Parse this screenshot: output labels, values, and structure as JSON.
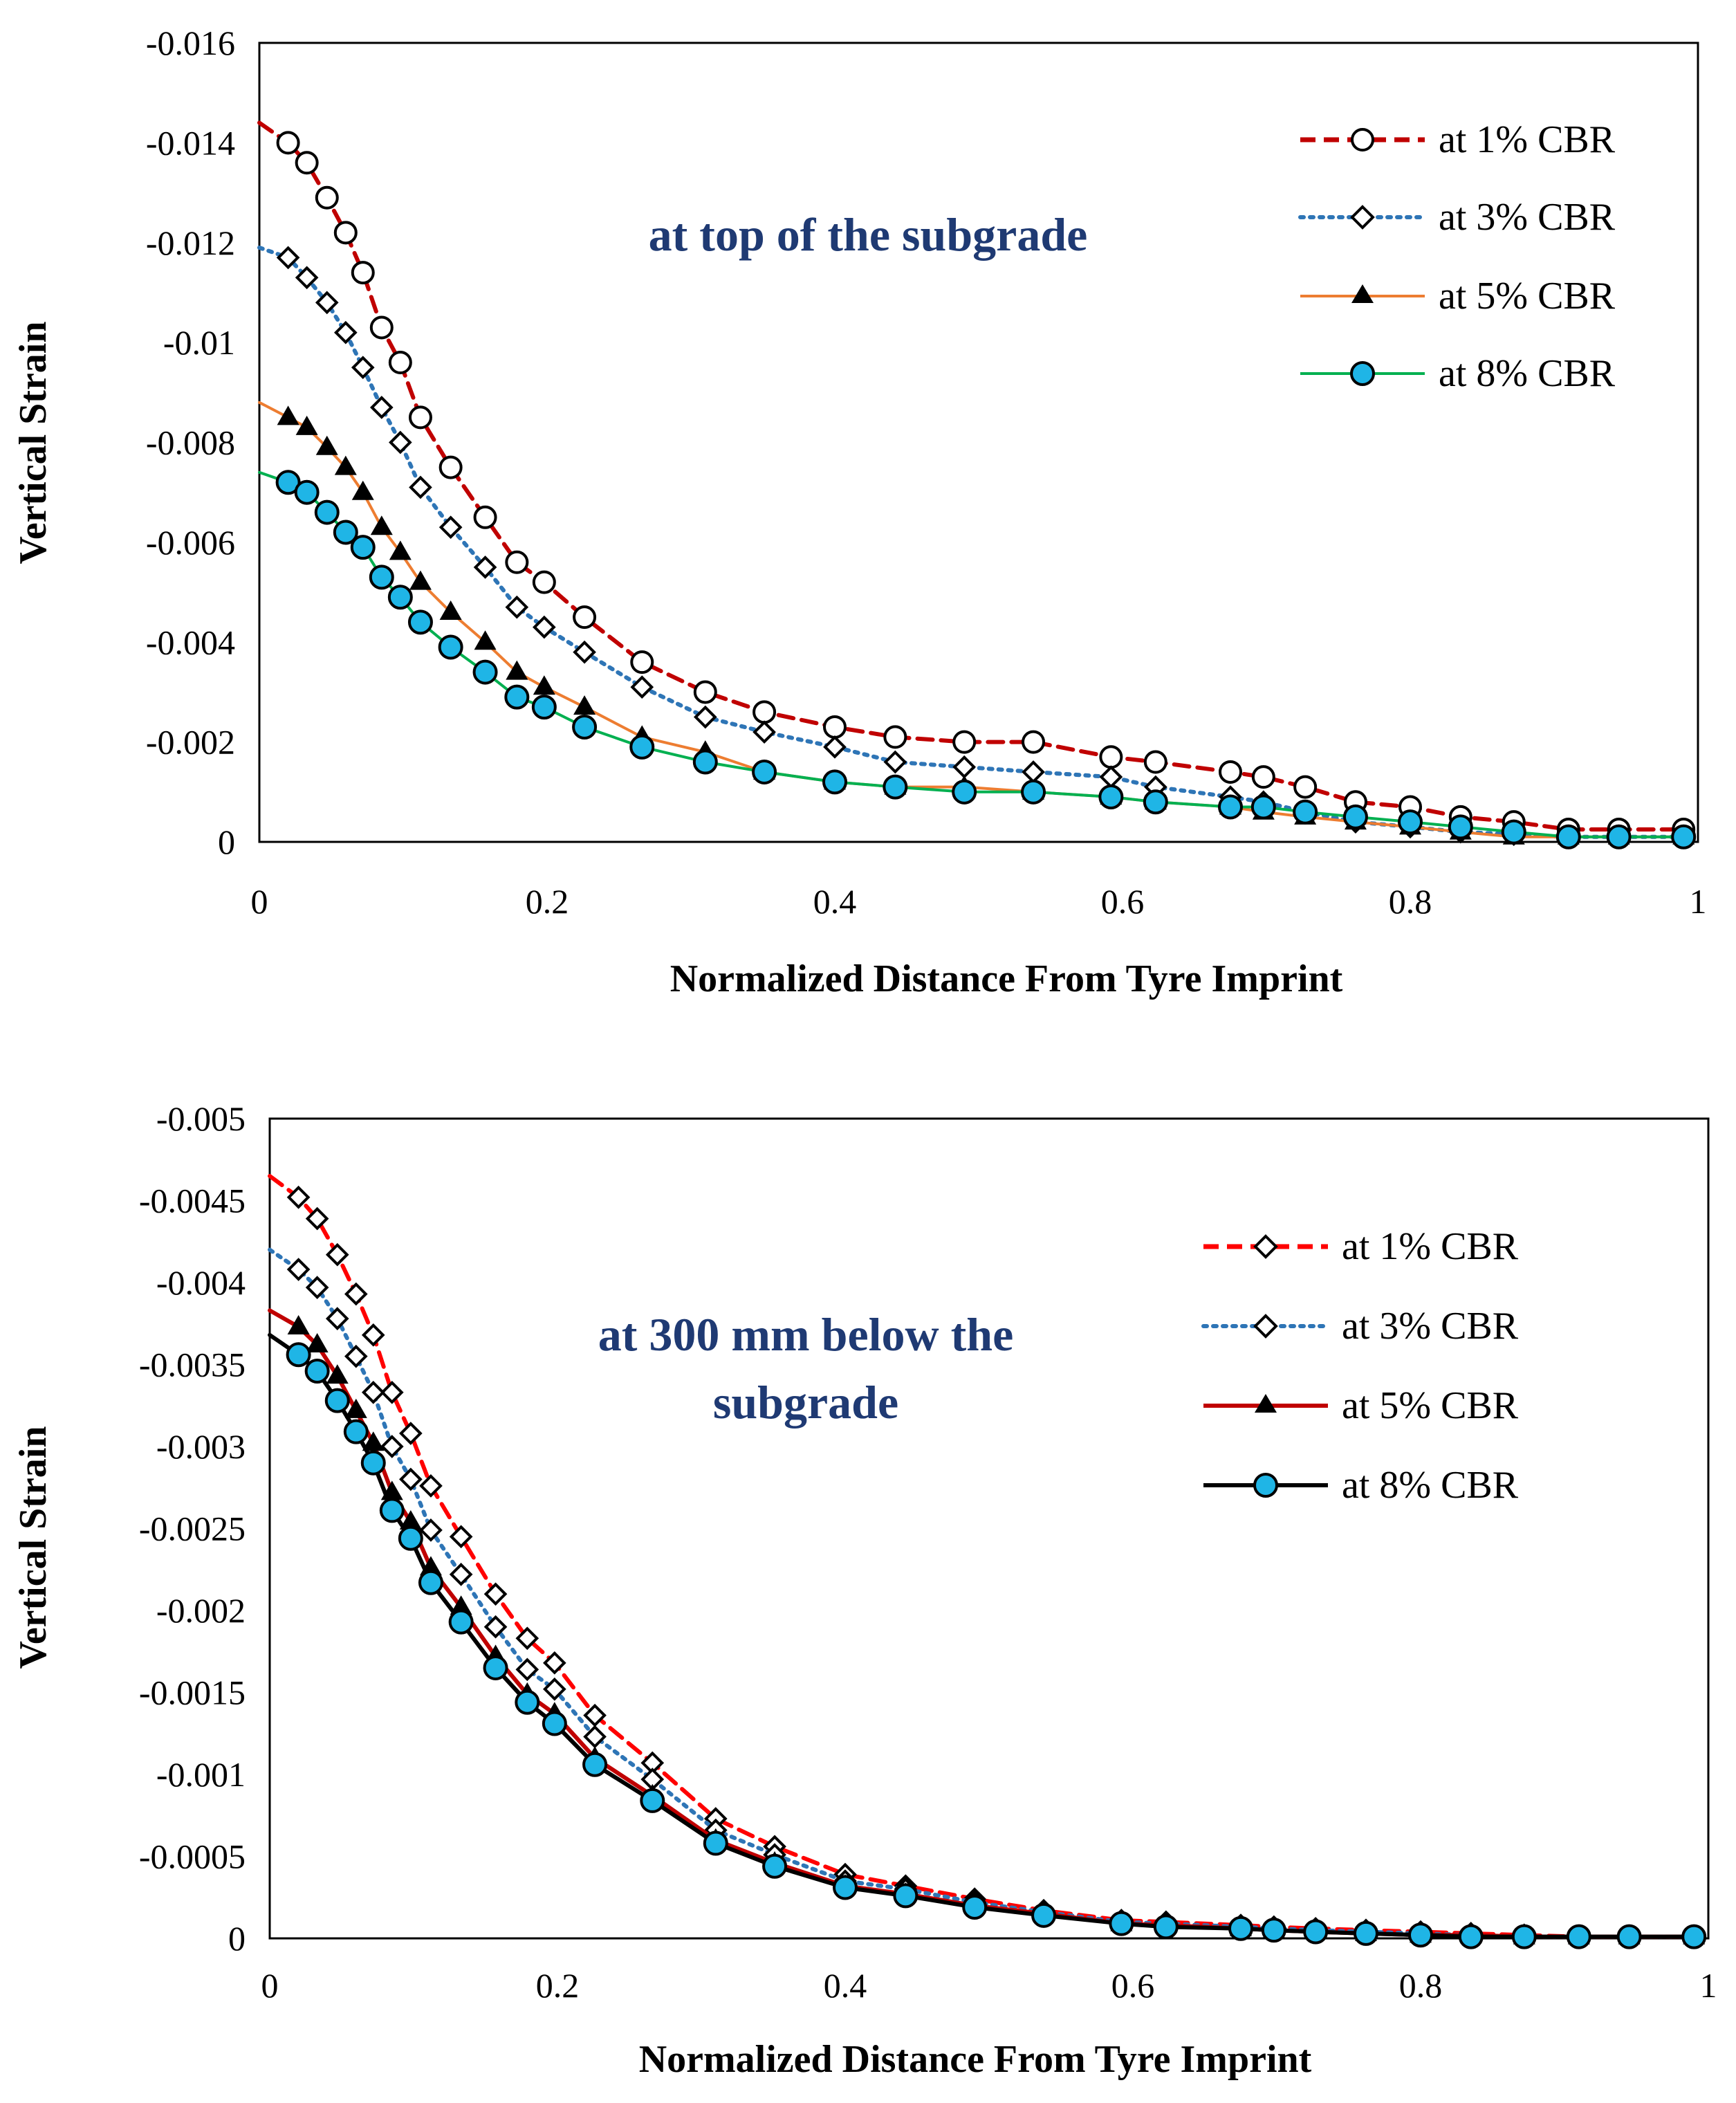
{
  "chart_data": [
    {
      "type": "line",
      "annotation": [
        "at top of the subgrade"
      ],
      "annotation_color": "#1f3a73",
      "xlabel": "Normalized Distance From Tyre Imprint",
      "ylabel": "Vertical Strain",
      "xlim": [
        0,
        1
      ],
      "ylim": [
        0,
        -0.016
      ],
      "x_ticks": [
        0,
        0.2,
        0.4,
        0.6,
        0.8,
        1
      ],
      "x_tick_labels": [
        "0",
        "0.2",
        "0.4",
        "0.6",
        "0.8",
        "1"
      ],
      "y_ticks": [
        -0.016,
        -0.014,
        -0.012,
        -0.01,
        -0.008,
        -0.006,
        -0.004,
        -0.002,
        0
      ],
      "y_tick_labels": [
        "-0.016",
        "-0.014",
        "-0.012",
        "-0.01",
        "-0.008",
        "-0.006",
        "-0.004",
        "-0.002",
        "0"
      ],
      "legend_position": "top-right",
      "x": [
        0.02,
        0.033,
        0.047,
        0.06,
        0.072,
        0.085,
        0.098,
        0.112,
        0.133,
        0.157,
        0.179,
        0.198,
        0.226,
        0.266,
        0.31,
        0.351,
        0.4,
        0.442,
        0.49,
        0.538,
        0.592,
        0.623,
        0.675,
        0.698,
        0.727,
        0.762,
        0.8,
        0.835,
        0.872,
        0.91,
        0.945,
        0.99
      ],
      "series": [
        {
          "name": "at 1% CBR",
          "color": "#c00000",
          "line_style": "dashed",
          "marker": "open-circle",
          "line_start": [
            0,
            -0.0144
          ],
          "values": [
            -0.014,
            -0.0136,
            -0.0129,
            -0.0122,
            -0.0114,
            -0.0103,
            -0.0096,
            -0.0085,
            -0.0075,
            -0.0065,
            -0.0056,
            -0.0052,
            -0.0045,
            -0.0036,
            -0.003,
            -0.0026,
            -0.0023,
            -0.0021,
            -0.002,
            -0.002,
            -0.0017,
            -0.0016,
            -0.0014,
            -0.0013,
            -0.0011,
            -0.0008,
            -0.0007,
            -0.0005,
            -0.0004,
            -0.00025,
            -0.00025,
            -0.00025
          ]
        },
        {
          "name": "at 3% CBR",
          "color": "#2e75b6",
          "line_style": "dotted",
          "marker": "open-diamond",
          "line_start": [
            0,
            -0.0119
          ],
          "values": [
            -0.0117,
            -0.0113,
            -0.0108,
            -0.0102,
            -0.0095,
            -0.0087,
            -0.008,
            -0.0071,
            -0.0063,
            -0.0055,
            -0.0047,
            -0.0043,
            -0.0038,
            -0.0031,
            -0.0025,
            -0.0022,
            -0.0019,
            -0.0016,
            -0.0015,
            -0.0014,
            -0.0013,
            -0.0011,
            -0.0009,
            -0.0008,
            -0.0006,
            -0.0004,
            -0.0003,
            -0.0002,
            -0.00015,
            -0.0001,
            -0.0001,
            -0.0001
          ]
        },
        {
          "name": "at 5% CBR",
          "color": "#ed7d31",
          "line_style": "solid",
          "marker": "filled-triangle",
          "line_start": [
            0,
            -0.0088
          ],
          "values": [
            -0.0085,
            -0.0083,
            -0.0079,
            -0.0075,
            -0.007,
            -0.0063,
            -0.0058,
            -0.0052,
            -0.0046,
            -0.004,
            -0.0034,
            -0.0031,
            -0.0027,
            -0.0021,
            -0.0018,
            -0.0014,
            -0.0012,
            -0.0011,
            -0.0011,
            -0.001,
            -0.0009,
            -0.0008,
            -0.0007,
            -0.0006,
            -0.0005,
            -0.0004,
            -0.0003,
            -0.0002,
            -0.0001,
            -0.0001,
            -0.0001,
            -0.0001
          ]
        },
        {
          "name": "at 8% CBR",
          "color": "#00b050",
          "line_style": "solid",
          "marker": "filled-circle",
          "marker_fill": "#1fb5e6",
          "line_start": [
            0,
            -0.0074
          ],
          "values": [
            -0.0072,
            -0.007,
            -0.0066,
            -0.0062,
            -0.0059,
            -0.0053,
            -0.0049,
            -0.0044,
            -0.0039,
            -0.0034,
            -0.0029,
            -0.0027,
            -0.0023,
            -0.0019,
            -0.0016,
            -0.0014,
            -0.0012,
            -0.0011,
            -0.001,
            -0.001,
            -0.0009,
            -0.0008,
            -0.0007,
            -0.0007,
            -0.0006,
            -0.0005,
            -0.0004,
            -0.0003,
            -0.0002,
            -0.0001,
            -0.0001,
            -0.0001
          ]
        }
      ]
    },
    {
      "type": "line",
      "annotation": [
        "at 300 mm below the",
        "subgrade"
      ],
      "annotation_color": "#1f3a73",
      "xlabel": "Normalized Distance From Tyre Imprint",
      "ylabel": "Vertical Strain",
      "xlim": [
        0,
        1
      ],
      "ylim": [
        0,
        -0.005
      ],
      "x_ticks": [
        0,
        0.2,
        0.4,
        0.6,
        0.8,
        1
      ],
      "x_tick_labels": [
        "0",
        "0.2",
        "0.4",
        "0.6",
        "0.8",
        "1"
      ],
      "y_ticks": [
        -0.005,
        -0.0045,
        -0.004,
        -0.0035,
        -0.003,
        -0.0025,
        -0.002,
        -0.0015,
        -0.001,
        -0.0005,
        0
      ],
      "y_tick_labels": [
        "-0.005",
        "-0.0045",
        "-0.004",
        "-0.0035",
        "-0.003",
        "-0.0025",
        "-0.002",
        "-0.0015",
        "-0.001",
        "-0.0005",
        "0"
      ],
      "legend_position": "top-right",
      "x": [
        0.02,
        0.033,
        0.047,
        0.06,
        0.072,
        0.085,
        0.098,
        0.112,
        0.133,
        0.157,
        0.179,
        0.198,
        0.226,
        0.266,
        0.31,
        0.351,
        0.4,
        0.442,
        0.49,
        0.538,
        0.592,
        0.623,
        0.675,
        0.698,
        0.727,
        0.762,
        0.8,
        0.835,
        0.872,
        0.91,
        0.945,
        0.99
      ],
      "series": [
        {
          "name": "at 1% CBR",
          "color": "#ff0000",
          "line_style": "dashed",
          "marker": "open-diamond",
          "line_start": [
            0,
            -0.00465
          ],
          "values": [
            -0.00452,
            -0.00439,
            -0.00417,
            -0.00393,
            -0.00368,
            -0.00333,
            -0.00308,
            -0.00276,
            -0.00245,
            -0.0021,
            -0.00183,
            -0.00168,
            -0.00136,
            -0.00107,
            -0.00073,
            -0.00056,
            -0.00039,
            -0.00032,
            -0.00024,
            -0.00017,
            -0.00011,
            -0.0001,
            -8e-05,
            -7e-05,
            -6e-05,
            -5e-05,
            -4e-05,
            -3e-05,
            -2e-05,
            -1e-05,
            -1e-05,
            -1e-05
          ]
        },
        {
          "name": "at 3% CBR",
          "color": "#2e75b6",
          "line_style": "dotted",
          "marker": "open-diamond",
          "line_start": [
            0,
            -0.0042
          ],
          "values": [
            -0.00408,
            -0.00397,
            -0.00378,
            -0.00355,
            -0.00333,
            -0.003,
            -0.0028,
            -0.00249,
            -0.00222,
            -0.0019,
            -0.00164,
            -0.00152,
            -0.00123,
            -0.00097,
            -0.00066,
            -0.00051,
            -0.00035,
            -0.0003,
            -0.00022,
            -0.00016,
            -0.0001,
            -9e-05,
            -7e-05,
            -6e-05,
            -5e-05,
            -4e-05,
            -3e-05,
            -2e-05,
            -1e-05,
            -1e-05,
            -1e-05,
            -1e-05
          ]
        },
        {
          "name": "at 5% CBR",
          "color": "#c00000",
          "line_style": "solid",
          "marker": "filled-triangle",
          "line_start": [
            0,
            -0.00383
          ],
          "values": [
            -0.00373,
            -0.00362,
            -0.00343,
            -0.00322,
            -0.00302,
            -0.00272,
            -0.00254,
            -0.00226,
            -0.00202,
            -0.00172,
            -0.00149,
            -0.00137,
            -0.0011,
            -0.00087,
            -0.0006,
            -0.00046,
            -0.00032,
            -0.00027,
            -0.0002,
            -0.00015,
            -9e-05,
            -8e-05,
            -6e-05,
            -5e-05,
            -4e-05,
            -3e-05,
            -2e-05,
            -2e-05,
            -1e-05,
            -1e-05,
            -1e-05,
            -1e-05
          ]
        },
        {
          "name": "at 8% CBR",
          "color": "#000000",
          "line_style": "solid",
          "marker": "filled-circle",
          "marker_fill": "#1fb5e6",
          "line_start": [
            0,
            -0.00368
          ],
          "values": [
            -0.00356,
            -0.00346,
            -0.00328,
            -0.00309,
            -0.0029,
            -0.00261,
            -0.00244,
            -0.00217,
            -0.00193,
            -0.00165,
            -0.00144,
            -0.00131,
            -0.00106,
            -0.00084,
            -0.00058,
            -0.00044,
            -0.00031,
            -0.00026,
            -0.00019,
            -0.00014,
            -9e-05,
            -7e-05,
            -6e-05,
            -5e-05,
            -4e-05,
            -3e-05,
            -2e-05,
            -1e-05,
            -1e-05,
            -1e-05,
            -1e-05,
            -1e-05
          ]
        }
      ]
    }
  ]
}
